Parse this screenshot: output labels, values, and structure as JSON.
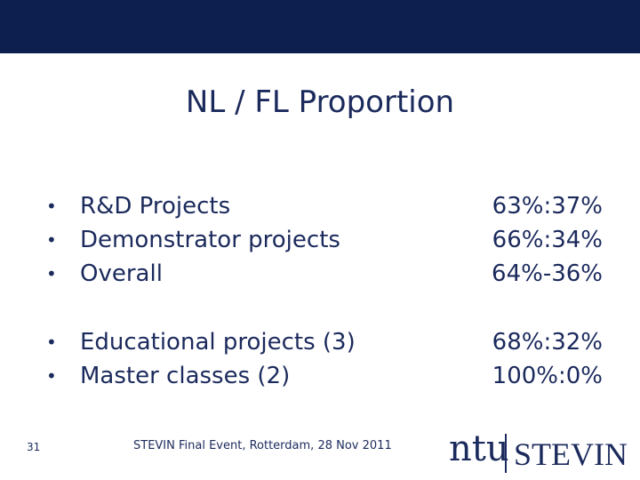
{
  "title": "NL / FL Proportion",
  "groups": [
    {
      "items": [
        {
          "label": "R&D Projects",
          "ratio": "63%:37%"
        },
        {
          "label": "Demonstrator projects",
          "ratio": "66%:34%"
        },
        {
          "label": "Overall",
          "ratio": "64%-36%"
        }
      ]
    },
    {
      "items": [
        {
          "label": "Educational projects (3)",
          "ratio": "68%:32%"
        },
        {
          "label": "Master classes (2)",
          "ratio": "100%:0%"
        }
      ]
    }
  ],
  "footer": {
    "page": "31",
    "text": "STEVIN Final Event, Rotterdam, 28 Nov 2011",
    "logo": {
      "left": "ntu",
      "right": "STEVIN"
    }
  }
}
